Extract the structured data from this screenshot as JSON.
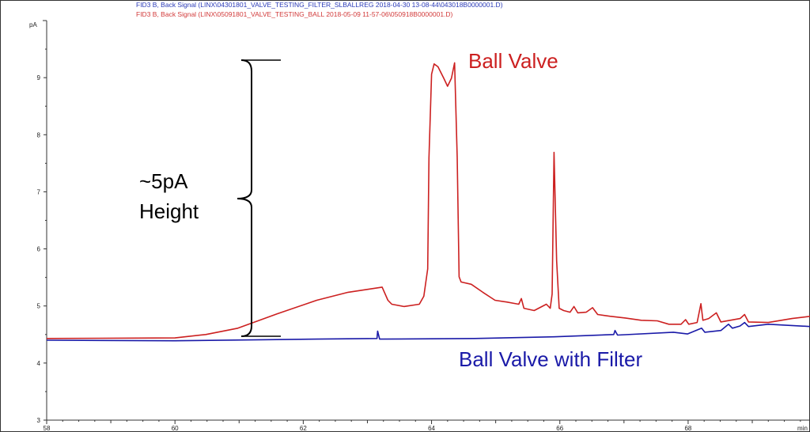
{
  "chart_data": {
    "type": "line",
    "headers": [
      {
        "text": "FID3 B, Back Signal (LINX\\04301801_VALVE_TESTING_FILTER_SLBALLREG 2018-04-30 13-08-44\\043018B0000001.D)",
        "color": "#2b3bb8"
      },
      {
        "text": "FID3 B, Back Signal (LINX\\05091801_VALVE_TESTING_BALL 2018-05-09 11-57-06\\050918B0000001.D)",
        "color": "#d23a3a"
      }
    ],
    "ylabel": "pA",
    "xlabel": "min",
    "xlim": [
      58,
      69.9
    ],
    "ylim": [
      3,
      10
    ],
    "xticks": [
      "58",
      "60",
      "62",
      "64",
      "66",
      "68"
    ],
    "yticks": [
      "3",
      "4",
      "5",
      "6",
      "7",
      "8",
      "9"
    ],
    "grid": false,
    "series": [
      {
        "name": "Ball Valve",
        "color": "#cc2020",
        "x": [
          58.0,
          60.0,
          60.48,
          60.98,
          61.59,
          62.21,
          62.7,
          63.23,
          63.32,
          63.38,
          63.57,
          63.81,
          63.88,
          63.94,
          63.96,
          64.0,
          64.04,
          64.1,
          64.19,
          64.25,
          64.31,
          64.36,
          64.4,
          64.43,
          64.46,
          64.62,
          64.8,
          64.99,
          65.17,
          65.36,
          65.4,
          65.44,
          65.6,
          65.79,
          65.85,
          65.88,
          65.91,
          65.95,
          65.99,
          66.06,
          66.16,
          66.22,
          66.28,
          66.41,
          66.51,
          66.59,
          66.78,
          67.02,
          67.27,
          67.52,
          67.7,
          67.89,
          67.96,
          68.01,
          68.14,
          68.2,
          68.23,
          68.32,
          68.44,
          68.51,
          68.81,
          68.88,
          68.94,
          69.25,
          69.62,
          69.91
        ],
        "y": [
          4.43,
          4.44,
          4.5,
          4.61,
          4.86,
          5.1,
          5.24,
          5.33,
          5.1,
          5.03,
          4.99,
          5.03,
          5.17,
          5.65,
          7.6,
          9.06,
          9.24,
          9.19,
          8.99,
          8.85,
          8.99,
          9.26,
          7.6,
          5.51,
          5.42,
          5.38,
          5.24,
          5.1,
          5.07,
          5.03,
          5.13,
          4.96,
          4.92,
          5.03,
          4.96,
          5.21,
          7.69,
          5.79,
          4.96,
          4.92,
          4.89,
          4.99,
          4.88,
          4.89,
          4.97,
          4.85,
          4.82,
          4.79,
          4.75,
          4.74,
          4.68,
          4.68,
          4.76,
          4.68,
          4.71,
          5.04,
          4.75,
          4.78,
          4.88,
          4.72,
          4.78,
          4.85,
          4.72,
          4.71,
          4.78,
          4.82
        ]
      },
      {
        "name": "Ball Valve with Filter",
        "color": "#1a1aa8",
        "x": [
          58.0,
          60.0,
          62.21,
          63.15,
          63.16,
          63.19,
          64.67,
          65.91,
          66.84,
          66.86,
          66.9,
          67.77,
          67.99,
          68.21,
          68.26,
          68.51,
          68.63,
          68.69,
          68.81,
          68.88,
          68.94,
          69.25,
          69.91
        ],
        "y": [
          4.4,
          4.39,
          4.42,
          4.43,
          4.56,
          4.42,
          4.43,
          4.46,
          4.5,
          4.57,
          4.49,
          4.54,
          4.51,
          4.61,
          4.54,
          4.57,
          4.68,
          4.61,
          4.65,
          4.71,
          4.64,
          4.68,
          4.64
        ]
      }
    ],
    "annotations": [
      {
        "text_lines": [
          "~5pA",
          "Height"
        ],
        "color": "#000000",
        "brace_from": 4.45,
        "brace_to": 9.3
      },
      {
        "text": "Ball Valve",
        "color": "#cc2020"
      },
      {
        "text": "Ball Valve with Filter",
        "color": "#1a1aa8"
      }
    ]
  }
}
